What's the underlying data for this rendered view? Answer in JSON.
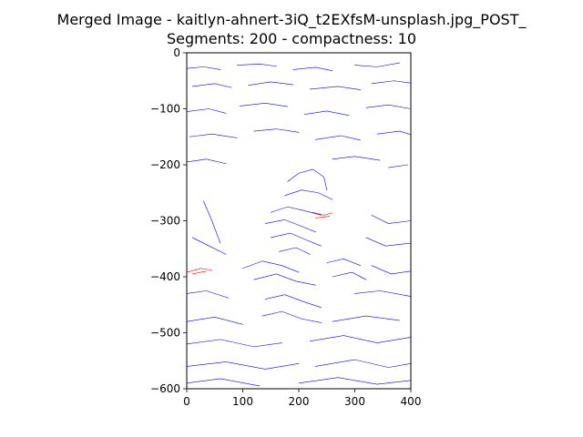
{
  "figure": {
    "title_line1": "Merged Image - kaitlyn-ahnert-3iQ_t2EXfsM-unsplash.jpg_POST_",
    "title_line2": "Segments: 200 - compactness: 10"
  },
  "chart_data": {
    "type": "line",
    "title": "Merged Image - kaitlyn-ahnert-3iQ_t2EXfsM-unsplash.jpg_POST_\nSegments: 200 - compactness: 10",
    "xlabel": "",
    "ylabel": "",
    "xlim": [
      0,
      400
    ],
    "ylim": [
      -600,
      0
    ],
    "x_ticks": [
      0,
      100,
      200,
      300,
      400
    ],
    "y_ticks": [
      0,
      -100,
      -200,
      -300,
      -400,
      -500,
      -600
    ],
    "x_tick_labels": [
      "0",
      "100",
      "200",
      "300",
      "400"
    ],
    "y_tick_labels": [
      "0",
      "−100",
      "−200",
      "−300",
      "−400",
      "−500",
      "−600"
    ],
    "grid": false,
    "legend": "none",
    "colors": {
      "primary": "#0000ff",
      "secondary": "#ff0000"
    },
    "series": [
      {
        "color": "#0000ff",
        "segments": [
          [
            [
              0,
              -28
            ],
            [
              30,
              -25
            ],
            [
              60,
              -30
            ]
          ],
          [
            [
              90,
              -22
            ],
            [
              130,
              -20
            ],
            [
              160,
              -24
            ]
          ],
          [
            [
              190,
              -30
            ],
            [
              230,
              -26
            ],
            [
              260,
              -32
            ]
          ],
          [
            [
              300,
              -22
            ],
            [
              340,
              -25
            ],
            [
              380,
              -18
            ]
          ],
          [
            [
              10,
              -60
            ],
            [
              50,
              -55
            ],
            [
              80,
              -62
            ]
          ],
          [
            [
              110,
              -58
            ],
            [
              150,
              -52
            ],
            [
              190,
              -57
            ]
          ],
          [
            [
              220,
              -65
            ],
            [
              270,
              -60
            ],
            [
              310,
              -66
            ]
          ],
          [
            [
              330,
              -55
            ],
            [
              370,
              -50
            ],
            [
              400,
              -54
            ]
          ],
          [
            [
              0,
              -105
            ],
            [
              40,
              -100
            ],
            [
              70,
              -108
            ]
          ],
          [
            [
              95,
              -95
            ],
            [
              140,
              -90
            ],
            [
              180,
              -96
            ]
          ],
          [
            [
              210,
              -110
            ],
            [
              250,
              -104
            ],
            [
              290,
              -112
            ]
          ],
          [
            [
              320,
              -98
            ],
            [
              360,
              -93
            ],
            [
              400,
              -100
            ]
          ],
          [
            [
              5,
              -150
            ],
            [
              45,
              -145
            ],
            [
              90,
              -152
            ]
          ],
          [
            [
              120,
              -140
            ],
            [
              160,
              -136
            ],
            [
              200,
              -142
            ]
          ],
          [
            [
              230,
              -155
            ],
            [
              275,
              -148
            ],
            [
              310,
              -156
            ]
          ],
          [
            [
              340,
              -145
            ],
            [
              380,
              -140
            ],
            [
              400,
              -146
            ]
          ],
          [
            [
              0,
              -195
            ],
            [
              35,
              -190
            ],
            [
              70,
              -198
            ]
          ],
          [
            [
              260,
              -190
            ],
            [
              300,
              -185
            ],
            [
              345,
              -192
            ]
          ],
          [
            [
              360,
              -205
            ],
            [
              395,
              -200
            ]
          ],
          [
            [
              180,
              -230
            ],
            [
              200,
              -215
            ],
            [
              225,
              -208
            ],
            [
              245,
              -222
            ],
            [
              250,
              -245
            ]
          ],
          [
            [
              175,
              -255
            ],
            [
              205,
              -245
            ],
            [
              235,
              -250
            ],
            [
              260,
              -262
            ]
          ],
          [
            [
              150,
              -285
            ],
            [
              180,
              -275
            ],
            [
              210,
              -282
            ],
            [
              240,
              -290
            ]
          ],
          [
            [
              140,
              -305
            ],
            [
              175,
              -298
            ],
            [
              205,
              -310
            ],
            [
              230,
              -320
            ]
          ],
          [
            [
              150,
              -330
            ],
            [
              185,
              -322
            ],
            [
              215,
              -335
            ],
            [
              240,
              -345
            ]
          ],
          [
            [
              165,
              -355
            ],
            [
              195,
              -348
            ],
            [
              220,
              -360
            ]
          ],
          [
            [
              100,
              -385
            ],
            [
              135,
              -372
            ],
            [
              170,
              -380
            ],
            [
              200,
              -392
            ]
          ],
          [
            [
              120,
              -405
            ],
            [
              160,
              -395
            ],
            [
              195,
              -408
            ],
            [
              230,
              -415
            ]
          ],
          [
            [
              250,
              -375
            ],
            [
              280,
              -368
            ],
            [
              310,
              -380
            ]
          ],
          [
            [
              260,
              -400
            ],
            [
              295,
              -392
            ],
            [
              320,
              -405
            ]
          ],
          [
            [
              140,
              -440
            ],
            [
              175,
              -432
            ],
            [
              210,
              -445
            ],
            [
              240,
              -455
            ]
          ],
          [
            [
              135,
              -470
            ],
            [
              170,
              -462
            ],
            [
              205,
              -475
            ],
            [
              240,
              -482
            ]
          ],
          [
            [
              30,
              -265
            ],
            [
              45,
              -300
            ],
            [
              60,
              -340
            ]
          ],
          [
            [
              10,
              -330
            ],
            [
              40,
              -345
            ],
            [
              70,
              -360
            ]
          ],
          [
            [
              330,
              -290
            ],
            [
              360,
              -305
            ],
            [
              400,
              -300
            ]
          ],
          [
            [
              320,
              -330
            ],
            [
              355,
              -345
            ],
            [
              400,
              -340
            ]
          ],
          [
            [
              330,
              -380
            ],
            [
              365,
              -395
            ],
            [
              400,
              -390
            ]
          ],
          [
            [
              0,
              -430
            ],
            [
              35,
              -425
            ],
            [
              75,
              -438
            ]
          ],
          [
            [
              300,
              -430
            ],
            [
              345,
              -425
            ],
            [
              400,
              -435
            ]
          ],
          [
            [
              0,
              -480
            ],
            [
              50,
              -472
            ],
            [
              100,
              -485
            ]
          ],
          [
            [
              260,
              -480
            ],
            [
              320,
              -470
            ],
            [
              380,
              -478
            ]
          ],
          [
            [
              0,
              -520
            ],
            [
              60,
              -512
            ],
            [
              120,
              -525
            ],
            [
              170,
              -518
            ]
          ],
          [
            [
              220,
              -515
            ],
            [
              280,
              -505
            ],
            [
              340,
              -518
            ],
            [
              400,
              -508
            ]
          ],
          [
            [
              0,
              -560
            ],
            [
              70,
              -552
            ],
            [
              140,
              -565
            ],
            [
              200,
              -555
            ]
          ],
          [
            [
              230,
              -560
            ],
            [
              300,
              -548
            ],
            [
              360,
              -562
            ],
            [
              400,
              -555
            ]
          ],
          [
            [
              0,
              -590
            ],
            [
              60,
              -582
            ],
            [
              130,
              -595
            ]
          ],
          [
            [
              200,
              -590
            ],
            [
              270,
              -580
            ],
            [
              340,
              -592
            ],
            [
              400,
              -585
            ]
          ]
        ]
      },
      {
        "color": "#ff0000",
        "segments": [
          [
            [
              225,
              -285
            ],
            [
              245,
              -290
            ],
            [
              260,
              -286
            ]
          ],
          [
            [
              230,
              -295
            ],
            [
              255,
              -292
            ]
          ],
          [
            [
              0,
              -392
            ],
            [
              25,
              -385
            ],
            [
              45,
              -388
            ]
          ],
          [
            [
              10,
              -395
            ],
            [
              35,
              -390
            ]
          ]
        ]
      }
    ]
  }
}
